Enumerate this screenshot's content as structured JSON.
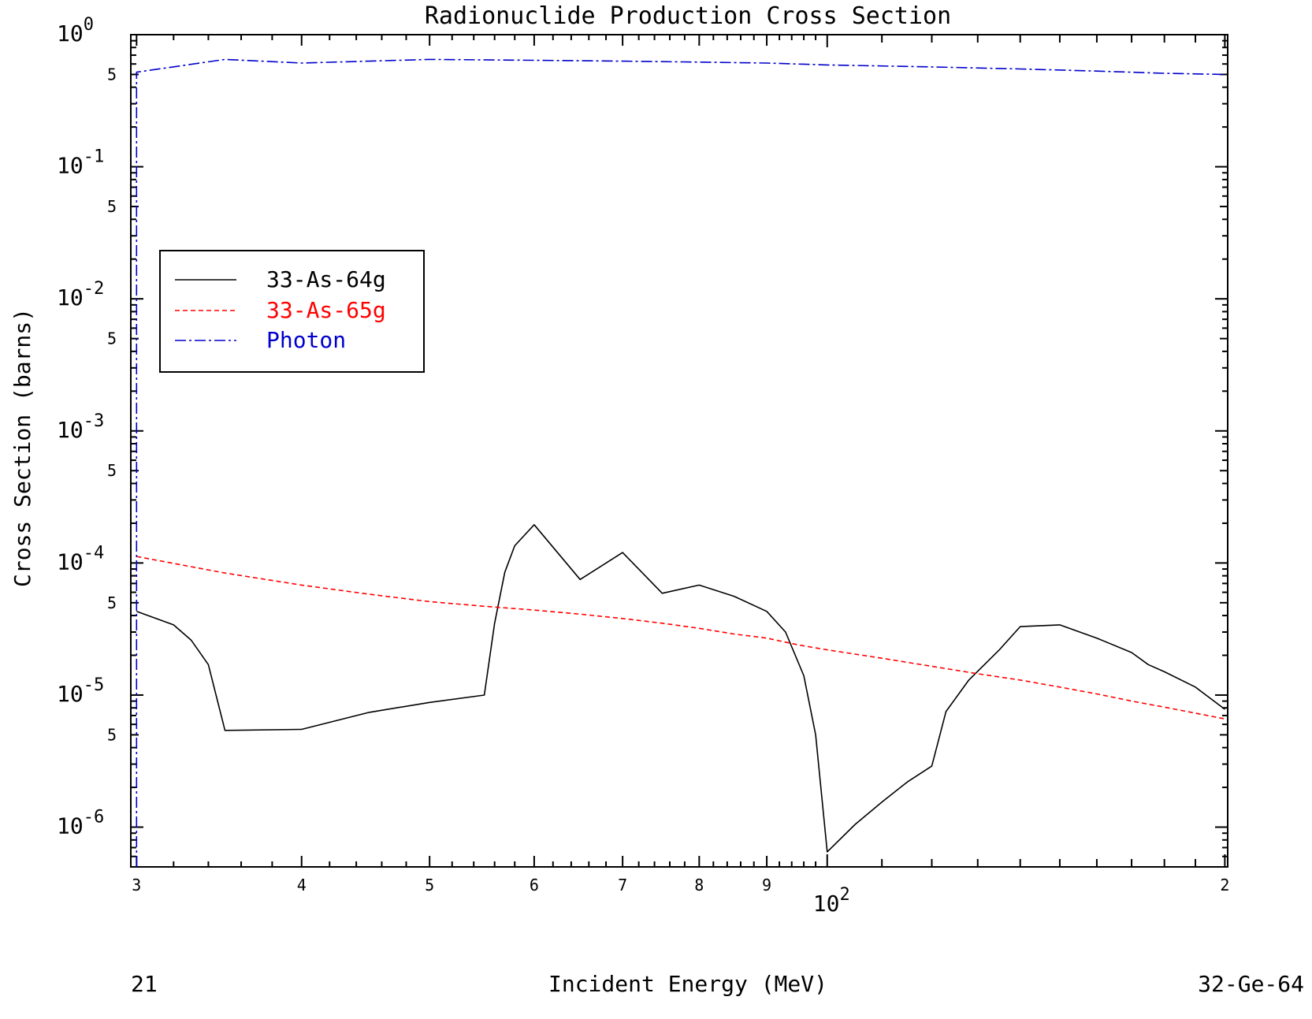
{
  "chart_data": {
    "type": "line",
    "title": "Radionuclide Production Cross Section",
    "xlabel": "Incident Energy (MeV)",
    "ylabel": "Cross Section (barns)",
    "footer_left": "21",
    "footer_right": "32-Ge-64",
    "x_scale": "log",
    "y_scale": "log",
    "xlim": [
      29.7,
      201
    ],
    "ylim": [
      5e-07,
      1.0
    ],
    "grid": false,
    "legend_position": "upper-left",
    "x_ticks": [
      {
        "value": 30,
        "label": "3"
      },
      {
        "value": 40,
        "label": "4"
      },
      {
        "value": 50,
        "label": "5"
      },
      {
        "value": 60,
        "label": "6"
      },
      {
        "value": 70,
        "label": "7"
      },
      {
        "value": 80,
        "label": "8"
      },
      {
        "value": 90,
        "label": "9"
      },
      {
        "value": 200,
        "label": "2"
      }
    ],
    "x_decade_label": {
      "value": 100,
      "base": "10",
      "exp": "2"
    },
    "y_decades": [
      {
        "value": 1,
        "base": "10",
        "exp": "0"
      },
      {
        "value": 0.1,
        "base": "10",
        "exp": "-1"
      },
      {
        "value": 0.01,
        "base": "10",
        "exp": "-2"
      },
      {
        "value": 0.001,
        "base": "10",
        "exp": "-3"
      },
      {
        "value": 0.0001,
        "base": "10",
        "exp": "-4"
      },
      {
        "value": 1e-05,
        "base": "10",
        "exp": "-5"
      },
      {
        "value": 1e-06,
        "base": "10",
        "exp": "-6"
      }
    ],
    "y_five_labels": [
      {
        "value": 0.5,
        "label": "5"
      },
      {
        "value": 0.05,
        "label": "5"
      },
      {
        "value": 0.005,
        "label": "5"
      },
      {
        "value": 0.0005,
        "label": "5"
      },
      {
        "value": 5e-05,
        "label": "5"
      },
      {
        "value": 5e-06,
        "label": "5"
      }
    ],
    "series": [
      {
        "name": "33-As-64g",
        "color": "#000000",
        "dash": "solid",
        "points": [
          [
            30,
            4.3e-05
          ],
          [
            32,
            3.4e-05
          ],
          [
            33,
            2.6e-05
          ],
          [
            34,
            1.7e-05
          ],
          [
            35,
            5.4e-06
          ],
          [
            40,
            5.5e-06
          ],
          [
            45,
            7.4e-06
          ],
          [
            50,
            8.8e-06
          ],
          [
            55,
            1e-05
          ],
          [
            56,
            3.5e-05
          ],
          [
            57,
            8.5e-05
          ],
          [
            58,
            0.000135
          ],
          [
            60,
            0.000195
          ],
          [
            65,
            7.5e-05
          ],
          [
            70,
            0.00012
          ],
          [
            75,
            5.9e-05
          ],
          [
            80,
            6.8e-05
          ],
          [
            85,
            5.6e-05
          ],
          [
            90,
            4.3e-05
          ],
          [
            93,
            3e-05
          ],
          [
            96,
            1.4e-05
          ],
          [
            98,
            5e-06
          ],
          [
            100,
            6.5e-07
          ],
          [
            105,
            1.05e-06
          ],
          [
            110,
            1.55e-06
          ],
          [
            115,
            2.2e-06
          ],
          [
            120,
            2.9e-06
          ],
          [
            123,
            7.5e-06
          ],
          [
            128,
            1.3e-05
          ],
          [
            135,
            2.2e-05
          ],
          [
            140,
            3.3e-05
          ],
          [
            150,
            3.4e-05
          ],
          [
            160,
            2.7e-05
          ],
          [
            170,
            2.1e-05
          ],
          [
            175,
            1.7e-05
          ],
          [
            180,
            1.5e-05
          ],
          [
            190,
            1.15e-05
          ],
          [
            200,
            7.8e-06
          ]
        ]
      },
      {
        "name": "33-As-65g",
        "color": "#ff0000",
        "dash": "6,4",
        "points": [
          [
            30,
            0.000112
          ],
          [
            35,
            8.4e-05
          ],
          [
            40,
            6.8e-05
          ],
          [
            45,
            5.8e-05
          ],
          [
            50,
            5.1e-05
          ],
          [
            55,
            4.7e-05
          ],
          [
            60,
            4.4e-05
          ],
          [
            65,
            4.1e-05
          ],
          [
            70,
            3.8e-05
          ],
          [
            75,
            3.5e-05
          ],
          [
            80,
            3.2e-05
          ],
          [
            85,
            2.9e-05
          ],
          [
            90,
            2.7e-05
          ],
          [
            95,
            2.4e-05
          ],
          [
            100,
            2.2e-05
          ],
          [
            110,
            1.9e-05
          ],
          [
            120,
            1.65e-05
          ],
          [
            130,
            1.45e-05
          ],
          [
            140,
            1.3e-05
          ],
          [
            150,
            1.15e-05
          ],
          [
            160,
            1.02e-05
          ],
          [
            170,
            9e-06
          ],
          [
            180,
            8.1e-06
          ],
          [
            190,
            7.3e-06
          ],
          [
            200,
            6.6e-06
          ]
        ]
      },
      {
        "name": "Photon",
        "color": "#0000cc",
        "dash": "14,4,3,4",
        "points": [
          [
            30,
            5e-07
          ],
          [
            30,
            0.52
          ],
          [
            35,
            0.65
          ],
          [
            40,
            0.61
          ],
          [
            50,
            0.65
          ],
          [
            60,
            0.64
          ],
          [
            70,
            0.63
          ],
          [
            80,
            0.62
          ],
          [
            90,
            0.61
          ],
          [
            100,
            0.59
          ],
          [
            120,
            0.57
          ],
          [
            140,
            0.55
          ],
          [
            160,
            0.53
          ],
          [
            180,
            0.51
          ],
          [
            200,
            0.5
          ]
        ]
      }
    ]
  }
}
